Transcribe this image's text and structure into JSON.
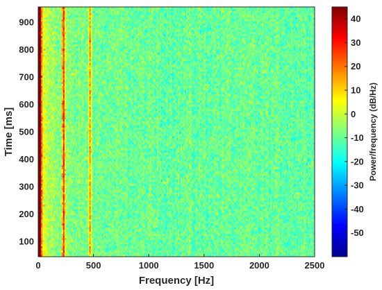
{
  "chart_data": {
    "type": "heatmap",
    "title": "",
    "xlabel": "Frequency [Hz]",
    "ylabel": "Time [ms]",
    "xlim": [
      0,
      2500
    ],
    "ylim": [
      45,
      955
    ],
    "x_ticks": [
      0,
      500,
      1000,
      1500,
      2000,
      2500
    ],
    "y_ticks": [
      100,
      200,
      300,
      400,
      500,
      600,
      700,
      800,
      900
    ],
    "colorbar": {
      "label": "Power/frequency (dB/Hz)",
      "range": [
        -60,
        45
      ],
      "ticks": [
        40,
        30,
        20,
        10,
        0,
        -10,
        -20,
        -30,
        -40,
        -50
      ],
      "colormap": "jet"
    },
    "background_level_db": -10,
    "features": [
      {
        "frequency": 10,
        "level_db": 40,
        "description_kind": "strong-line"
      },
      {
        "frequency": 230,
        "level_db": 28,
        "description_kind": "strong-line"
      },
      {
        "frequency": 470,
        "level_db": 15,
        "description_kind": "line"
      }
    ]
  },
  "colors": {
    "axis": "#262626",
    "background": "#ffffff"
  }
}
